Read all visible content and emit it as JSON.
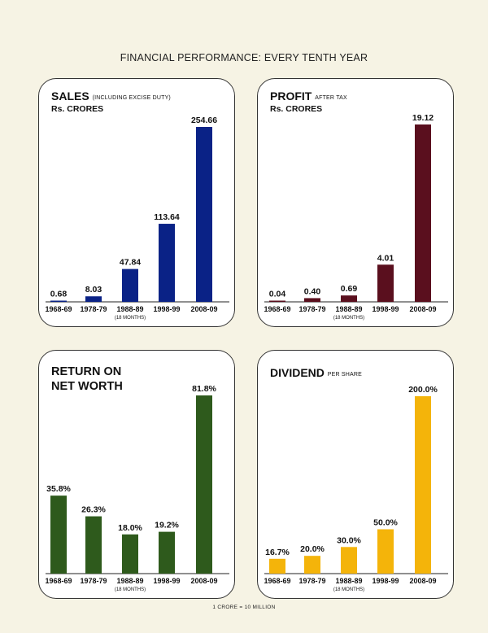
{
  "page": {
    "title": "FINANCIAL PERFORMANCE: EVERY TENTH YEAR",
    "footnote": "1 CRORE = 10 MILLION"
  },
  "chart_data": [
    {
      "type": "bar",
      "title": "SALES",
      "subtitle": "(INCLUDING EXCISE DUTY)",
      "unit": "Rs. CRORES",
      "categories": [
        "1968-69",
        "1978-79",
        "1988-89",
        "1998-99",
        "2008-09"
      ],
      "category_note": {
        "index": 2,
        "text": "(18 MONTHS)"
      },
      "values": [
        0.68,
        8.03,
        47.84,
        113.64,
        254.66
      ],
      "value_labels": [
        "0.68",
        "8.03",
        "47.84",
        "113.64",
        "254.66"
      ],
      "color": "#0a2286",
      "ylim": [
        0,
        254.66
      ]
    },
    {
      "type": "bar",
      "title": "PROFIT",
      "subtitle": "AFTER TAX",
      "unit": "Rs. CRORES",
      "categories": [
        "1968-69",
        "1978-79",
        "1988-89",
        "1998-99",
        "2008-09"
      ],
      "category_note": {
        "index": 2,
        "text": "(18 MONTHS)"
      },
      "values": [
        0.04,
        0.4,
        0.69,
        4.01,
        19.12
      ],
      "value_labels": [
        "0.04",
        "0.40",
        "0.69",
        "4.01",
        "19.12"
      ],
      "color": "#5a0f1e",
      "ylim": [
        0,
        19.12
      ]
    },
    {
      "type": "bar",
      "title": "RETURN ON NET WORTH",
      "subtitle": "",
      "unit": "",
      "categories": [
        "1968-69",
        "1978-79",
        "1988-89",
        "1998-99",
        "2008-09"
      ],
      "category_note": {
        "index": 2,
        "text": "(18 MONTHS)"
      },
      "values": [
        35.8,
        26.3,
        18.0,
        19.2,
        81.8
      ],
      "value_labels": [
        "35.8%",
        "26.3%",
        "18.0%",
        "19.2%",
        "81.8%"
      ],
      "color": "#2e5a1c",
      "ylim": [
        0,
        81.8
      ]
    },
    {
      "type": "bar",
      "title": "DIVIDEND",
      "subtitle": "PER SHARE",
      "unit": "",
      "categories": [
        "1968-69",
        "1978-79",
        "1988-89",
        "1998-99",
        "2008-09"
      ],
      "category_note": {
        "index": 2,
        "text": "(18 MONTHS)"
      },
      "values": [
        16.7,
        20.0,
        30.0,
        50.0,
        200.0
      ],
      "value_labels": [
        "16.7%",
        "20.0%",
        "30.0%",
        "50.0%",
        "200.0%"
      ],
      "color": "#f4b40a",
      "ylim": [
        0,
        200.0
      ]
    }
  ]
}
